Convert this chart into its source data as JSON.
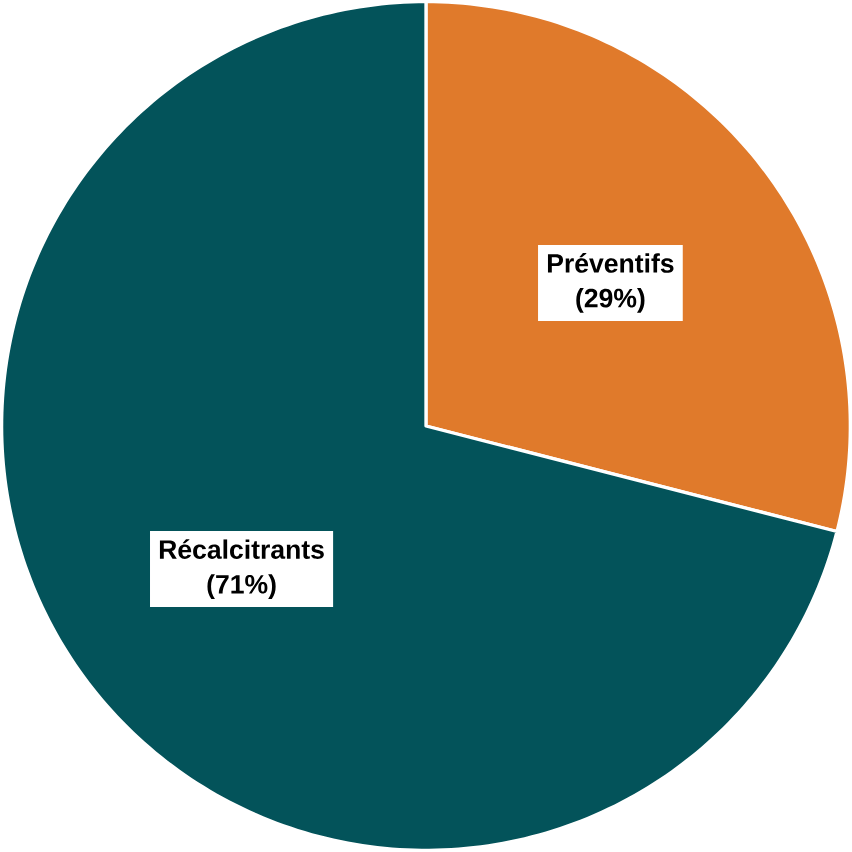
{
  "chart_data": {
    "type": "pie",
    "categories": [
      "Préventifs",
      "Récalcitrants"
    ],
    "values": [
      29,
      71
    ],
    "colors": [
      "#e07a2b",
      "#03535a"
    ],
    "value_labels": [
      "(29%)",
      "(71%)"
    ]
  }
}
